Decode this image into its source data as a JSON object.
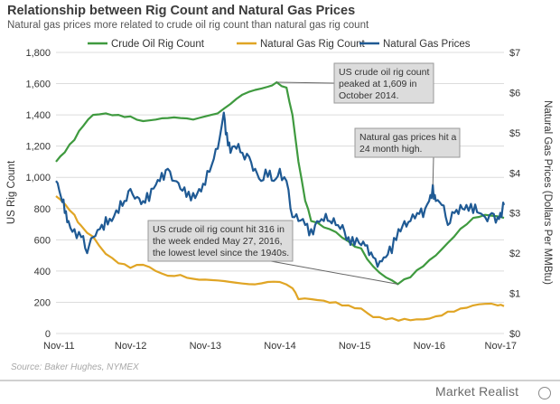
{
  "header": {
    "title": "Relationship between Rig Count and Natural Gas Prices",
    "subtitle": "Natural gas prices more related to crude oil rig count than natural gas rig count"
  },
  "footer": {
    "source": "Source: Baker Hughes, NYMEX",
    "brand": "Market Realist"
  },
  "chart_data": {
    "type": "line",
    "ylabel": "US Rig Count",
    "y2label": "Natural Gas Prices (Dollars Per MMBtu)",
    "ylim": [
      0,
      1800
    ],
    "y2lim": [
      0,
      7
    ],
    "xlim": [
      2011.833,
      2017.833
    ],
    "x_ticks": [
      {
        "x": 2011.833,
        "label": "Nov-11"
      },
      {
        "x": 2012.833,
        "label": "Nov-12"
      },
      {
        "x": 2013.833,
        "label": "Nov-13"
      },
      {
        "x": 2014.833,
        "label": "Nov-14"
      },
      {
        "x": 2015.833,
        "label": "Nov-15"
      },
      {
        "x": 2016.833,
        "label": "Nov-16"
      },
      {
        "x": 2017.833,
        "label": "Nov-17"
      }
    ],
    "y_ticks": [
      {
        "v": 0,
        "label": "0"
      },
      {
        "v": 200,
        "label": "200"
      },
      {
        "v": 400,
        "label": "400"
      },
      {
        "v": 600,
        "label": "600"
      },
      {
        "v": 800,
        "label": "800"
      },
      {
        "v": 1000,
        "label": "1,000"
      },
      {
        "v": 1200,
        "label": "1,200"
      },
      {
        "v": 1400,
        "label": "1,400"
      },
      {
        "v": 1600,
        "label": "1,600"
      },
      {
        "v": 1800,
        "label": "1,800"
      }
    ],
    "y2_ticks": [
      {
        "v": 0,
        "label": "$0"
      },
      {
        "v": 1,
        "label": "$1"
      },
      {
        "v": 2,
        "label": "$2"
      },
      {
        "v": 3,
        "label": "$3"
      },
      {
        "v": 4,
        "label": "$4"
      },
      {
        "v": 5,
        "label": "$5"
      },
      {
        "v": 6,
        "label": "$6"
      },
      {
        "v": 7,
        "label": "$7"
      }
    ],
    "grid": "horizontal",
    "legend_position": "top",
    "series": [
      {
        "name": "Crude Oil Rig Count",
        "axis": "left",
        "color": "#3f9a3f",
        "points": [
          [
            2011.833,
            1100
          ],
          [
            2011.95,
            1160
          ],
          [
            2012.08,
            1240
          ],
          [
            2012.2,
            1330
          ],
          [
            2012.33,
            1400
          ],
          [
            2012.5,
            1410
          ],
          [
            2012.67,
            1400
          ],
          [
            2012.83,
            1390
          ],
          [
            2013.0,
            1360
          ],
          [
            2013.17,
            1370
          ],
          [
            2013.33,
            1380
          ],
          [
            2013.5,
            1380
          ],
          [
            2013.67,
            1370
          ],
          [
            2013.83,
            1390
          ],
          [
            2014.0,
            1410
          ],
          [
            2014.17,
            1470
          ],
          [
            2014.33,
            1530
          ],
          [
            2014.5,
            1560
          ],
          [
            2014.67,
            1580
          ],
          [
            2014.79,
            1609
          ],
          [
            2014.92,
            1575
          ],
          [
            2015.0,
            1400
          ],
          [
            2015.08,
            1100
          ],
          [
            2015.17,
            850
          ],
          [
            2015.25,
            720
          ],
          [
            2015.42,
            680
          ],
          [
            2015.58,
            650
          ],
          [
            2015.75,
            590
          ],
          [
            2015.92,
            545
          ],
          [
            2016.08,
            430
          ],
          [
            2016.25,
            360
          ],
          [
            2016.41,
            316
          ],
          [
            2016.58,
            360
          ],
          [
            2016.75,
            430
          ],
          [
            2016.92,
            500
          ],
          [
            2017.08,
            580
          ],
          [
            2017.25,
            670
          ],
          [
            2017.42,
            740
          ],
          [
            2017.58,
            760
          ],
          [
            2017.75,
            750
          ],
          [
            2017.833,
            740
          ]
        ]
      },
      {
        "name": "Natural Gas Rig Count",
        "axis": "left",
        "color": "#e0a525",
        "points": [
          [
            2011.833,
            880
          ],
          [
            2011.95,
            830
          ],
          [
            2012.08,
            760
          ],
          [
            2012.17,
            690
          ],
          [
            2012.33,
            620
          ],
          [
            2012.5,
            510
          ],
          [
            2012.67,
            450
          ],
          [
            2012.83,
            420
          ],
          [
            2013.0,
            440
          ],
          [
            2013.17,
            400
          ],
          [
            2013.33,
            370
          ],
          [
            2013.5,
            375
          ],
          [
            2013.67,
            350
          ],
          [
            2013.83,
            345
          ],
          [
            2014.0,
            340
          ],
          [
            2014.17,
            330
          ],
          [
            2014.33,
            320
          ],
          [
            2014.5,
            315
          ],
          [
            2014.67,
            330
          ],
          [
            2014.83,
            330
          ],
          [
            2015.0,
            290
          ],
          [
            2015.08,
            220
          ],
          [
            2015.25,
            220
          ],
          [
            2015.42,
            210
          ],
          [
            2015.58,
            200
          ],
          [
            2015.75,
            180
          ],
          [
            2015.92,
            160
          ],
          [
            2016.08,
            105
          ],
          [
            2016.25,
            90
          ],
          [
            2016.42,
            82
          ],
          [
            2016.58,
            85
          ],
          [
            2016.75,
            90
          ],
          [
            2016.92,
            110
          ],
          [
            2017.08,
            140
          ],
          [
            2017.25,
            160
          ],
          [
            2017.42,
            180
          ],
          [
            2017.58,
            190
          ],
          [
            2017.75,
            180
          ],
          [
            2017.833,
            175
          ]
        ]
      },
      {
        "name": "Natural Gas Prices",
        "axis": "right",
        "color": "#1f5a94",
        "points": [
          [
            2011.833,
            3.8
          ],
          [
            2011.9,
            3.4
          ],
          [
            2011.95,
            3.0
          ],
          [
            2012.0,
            2.8
          ],
          [
            2012.08,
            2.6
          ],
          [
            2012.17,
            2.4
          ],
          [
            2012.25,
            2.0
          ],
          [
            2012.33,
            2.4
          ],
          [
            2012.42,
            2.6
          ],
          [
            2012.5,
            2.9
          ],
          [
            2012.58,
            2.8
          ],
          [
            2012.67,
            3.0
          ],
          [
            2012.75,
            3.3
          ],
          [
            2012.83,
            3.6
          ],
          [
            2012.92,
            3.4
          ],
          [
            2013.0,
            3.3
          ],
          [
            2013.08,
            3.3
          ],
          [
            2013.17,
            3.7
          ],
          [
            2013.25,
            4.0
          ],
          [
            2013.33,
            4.1
          ],
          [
            2013.42,
            3.8
          ],
          [
            2013.5,
            3.6
          ],
          [
            2013.58,
            3.4
          ],
          [
            2013.67,
            3.5
          ],
          [
            2013.75,
            3.6
          ],
          [
            2013.83,
            3.7
          ],
          [
            2013.92,
            4.2
          ],
          [
            2014.0,
            4.6
          ],
          [
            2014.08,
            5.5
          ],
          [
            2014.12,
            5.0
          ],
          [
            2014.17,
            4.5
          ],
          [
            2014.25,
            4.6
          ],
          [
            2014.33,
            4.5
          ],
          [
            2014.42,
            4.4
          ],
          [
            2014.5,
            4.1
          ],
          [
            2014.58,
            3.8
          ],
          [
            2014.67,
            3.9
          ],
          [
            2014.75,
            3.8
          ],
          [
            2014.83,
            4.1
          ],
          [
            2014.92,
            3.8
          ],
          [
            2015.0,
            2.9
          ],
          [
            2015.08,
            2.8
          ],
          [
            2015.17,
            2.7
          ],
          [
            2015.25,
            2.6
          ],
          [
            2015.33,
            2.8
          ],
          [
            2015.42,
            2.8
          ],
          [
            2015.5,
            2.8
          ],
          [
            2015.58,
            2.7
          ],
          [
            2015.67,
            2.7
          ],
          [
            2015.75,
            2.4
          ],
          [
            2015.83,
            2.2
          ],
          [
            2015.92,
            2.2
          ],
          [
            2016.0,
            2.2
          ],
          [
            2016.08,
            1.9
          ],
          [
            2016.17,
            1.8
          ],
          [
            2016.25,
            1.9
          ],
          [
            2016.33,
            2.0
          ],
          [
            2016.42,
            2.6
          ],
          [
            2016.5,
            2.8
          ],
          [
            2016.58,
            2.8
          ],
          [
            2016.67,
            3.0
          ],
          [
            2016.75,
            2.9
          ],
          [
            2016.83,
            3.3
          ],
          [
            2016.88,
            3.7
          ],
          [
            2016.92,
            3.3
          ],
          [
            2017.0,
            3.2
          ],
          [
            2017.08,
            2.7
          ],
          [
            2017.17,
            3.0
          ],
          [
            2017.25,
            3.2
          ],
          [
            2017.33,
            3.2
          ],
          [
            2017.42,
            3.0
          ],
          [
            2017.5,
            3.0
          ],
          [
            2017.58,
            2.9
          ],
          [
            2017.67,
            3.0
          ],
          [
            2017.75,
            2.9
          ],
          [
            2017.8,
            2.9
          ],
          [
            2017.833,
            3.2
          ]
        ]
      }
    ],
    "annotations": [
      {
        "text": [
          "US crude oil rig count",
          "peaked at 1,609 in",
          "October 2014."
        ],
        "target": [
          2014.79,
          1609
        ],
        "target_axis": "left"
      },
      {
        "text": [
          "Natural gas prices hit a",
          "24 month high."
        ],
        "target": [
          2016.88,
          3.7
        ],
        "target_axis": "right"
      },
      {
        "text": [
          "US crude oil rig count hit 316 in",
          "the week ended May 27, 2016,",
          "the lowest level since the 1940s."
        ],
        "target": [
          2016.41,
          316
        ],
        "target_axis": "left"
      }
    ]
  }
}
